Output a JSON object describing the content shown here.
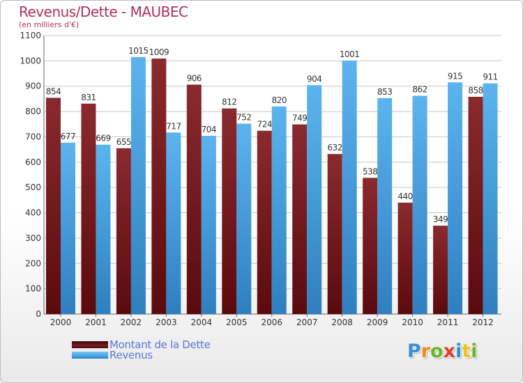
{
  "chart_data": {
    "type": "bar",
    "title": "Revenus/Dette - MAUBEC",
    "subtitle": "(en milliers d'€)",
    "categories": [
      "2000",
      "2001",
      "2002",
      "2003",
      "2004",
      "2005",
      "2006",
      "2007",
      "2008",
      "2009",
      "2010",
      "2011",
      "2012"
    ],
    "series": [
      {
        "name": "Montant de la Dette",
        "values": [
          854,
          831,
          655,
          1009,
          906,
          812,
          724,
          749,
          632,
          538,
          440,
          349,
          858
        ],
        "color": "#7a1e22"
      },
      {
        "name": "Revenus",
        "values": [
          677,
          669,
          1015,
          717,
          704,
          752,
          820,
          904,
          1001,
          853,
          862,
          915,
          911
        ],
        "color": "#4aa6e6"
      }
    ],
    "ylim": [
      0,
      1100
    ],
    "yticks": [
      0,
      100,
      200,
      300,
      400,
      500,
      600,
      700,
      800,
      900,
      1000,
      1100
    ],
    "grid": true,
    "legend_position": "bottom-left"
  },
  "logo": {
    "letters": [
      "P",
      "r",
      "o",
      "x",
      "i",
      "t",
      "i"
    ],
    "colors": [
      "#3a8fd0",
      "#f08a1c",
      "#6ab42a",
      "#e63a2a",
      "#2a8fd0",
      "#f0c21c",
      "#6ab42a"
    ]
  }
}
